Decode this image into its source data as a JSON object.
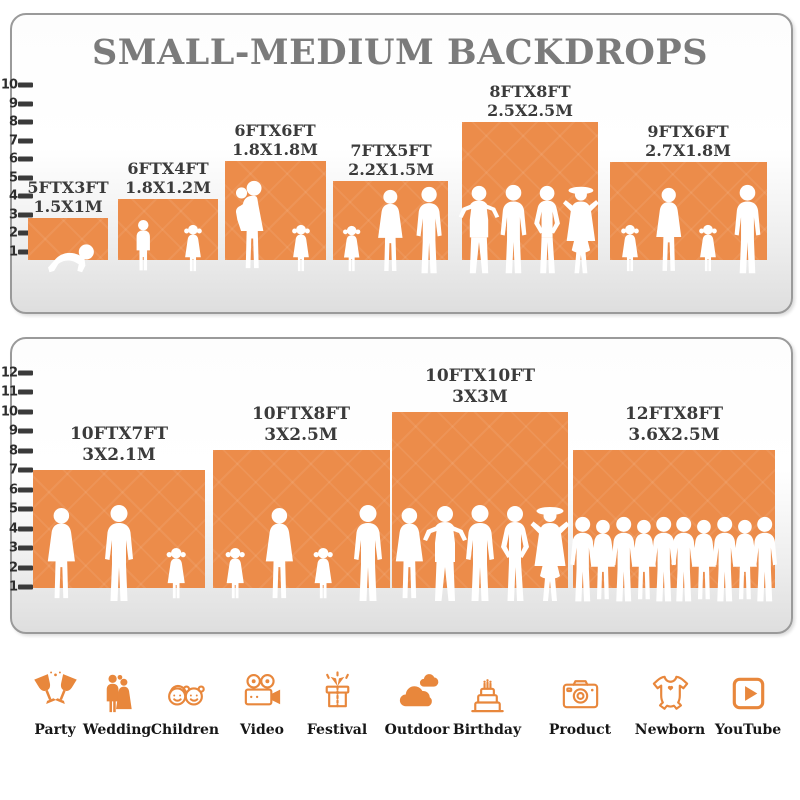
{
  "title": "SMALL-MEDIUM BACKDROPS",
  "colors": {
    "backdrop_orange": "#EC8C4A",
    "icon_orange": "#E8873C",
    "title_gray": "#7B7B7B",
    "label_dark": "#3B3B3B"
  },
  "panel_top": {
    "ticks": [
      "10",
      "9",
      "8",
      "7",
      "6",
      "5",
      "4",
      "3",
      "2",
      "1"
    ],
    "backdrops": [
      {
        "size_ft": "5FTX3FT",
        "size_m": "1.5X1M",
        "people": [
          "baby-crawl"
        ]
      },
      {
        "size_ft": "6FTX4FT",
        "size_m": "1.8X1.2M",
        "people": [
          "boy",
          "girl"
        ]
      },
      {
        "size_ft": "6FTX6FT",
        "size_m": "1.8X1.8M",
        "people": [
          "woman-baby",
          "girl"
        ]
      },
      {
        "size_ft": "7FTX5FT",
        "size_m": "2.2X1.5M",
        "people": [
          "girl",
          "woman",
          "man"
        ]
      },
      {
        "size_ft": "8FTX8FT",
        "size_m": "2.5X2.5M",
        "people": [
          "man-elbows",
          "man",
          "man-hips",
          "woman-hat"
        ]
      },
      {
        "size_ft": "9FTX6FT",
        "size_m": "2.7X1.8M",
        "people": [
          "girl",
          "woman",
          "girl",
          "man"
        ]
      }
    ]
  },
  "panel_bottom": {
    "ticks": [
      "12",
      "11",
      "10",
      "9",
      "8",
      "7",
      "6",
      "5",
      "4",
      "3",
      "2",
      "1"
    ],
    "backdrops": [
      {
        "size_ft": "10FTX7FT",
        "size_m": "3X2.1M",
        "people": [
          "woman",
          "man",
          "girl"
        ]
      },
      {
        "size_ft": "10FTX8FT",
        "size_m": "3X2.5M",
        "people": [
          "girl",
          "woman",
          "girl",
          "man"
        ]
      },
      {
        "size_ft": "10FTX10FT",
        "size_m": "3X3M",
        "people": [
          "woman",
          "man-elbows",
          "man",
          "man-hips",
          "woman-hat"
        ]
      },
      {
        "size_ft": "12FTX8FT",
        "size_m": "3.6X2.5M",
        "people": [
          "man",
          "woman",
          "man",
          "woman",
          "man",
          "man",
          "woman",
          "man",
          "woman",
          "man"
        ]
      }
    ]
  },
  "categories": [
    {
      "label": "Party"
    },
    {
      "label": "Wedding"
    },
    {
      "label": "Children"
    },
    {
      "label": "Video"
    },
    {
      "label": "Festival"
    },
    {
      "label": "Outdoor"
    },
    {
      "label": "Birthday"
    },
    {
      "label": "Product"
    },
    {
      "label": "Newborn"
    },
    {
      "label": "YouTube"
    }
  ]
}
